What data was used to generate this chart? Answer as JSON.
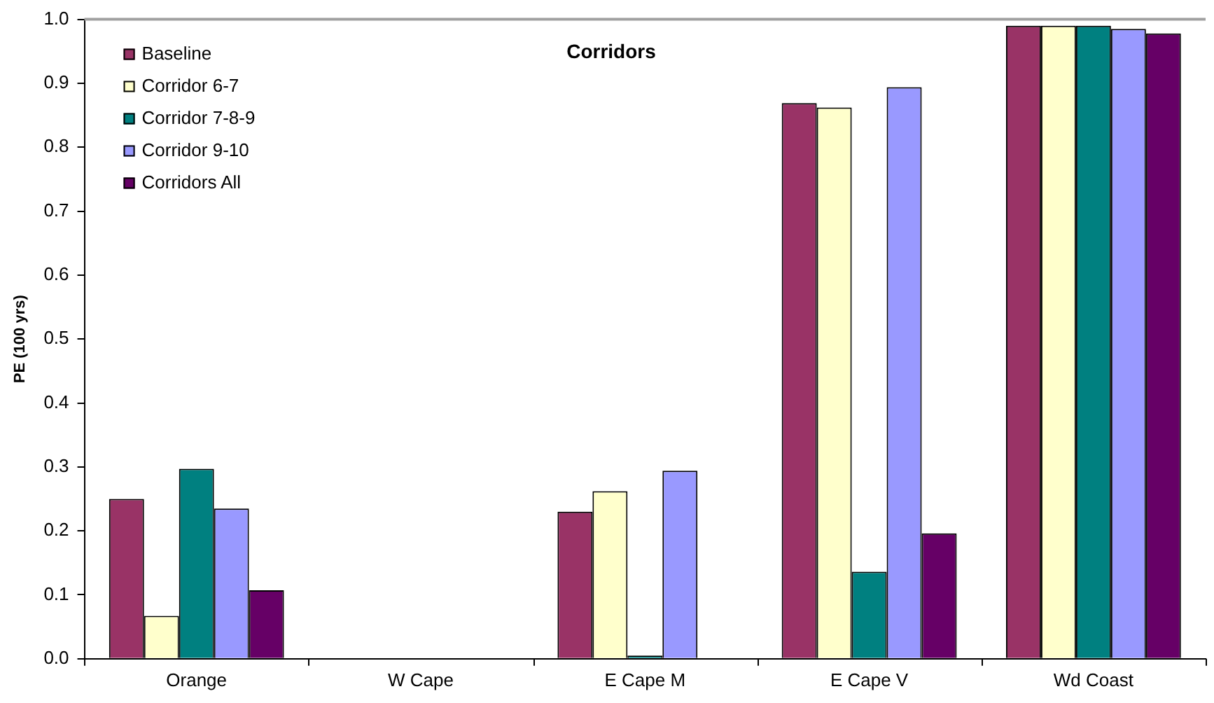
{
  "chart_data": {
    "type": "bar",
    "title": "Corridors",
    "ylabel": "PE (100 yrs)",
    "categories": [
      "Orange",
      "W Cape",
      "E Cape M",
      "E Cape V",
      "Wd Coast"
    ],
    "series": [
      {
        "name": "Baseline",
        "color": "#993366",
        "values": [
          0.25,
          0,
          0.23,
          0.869,
          0.99
        ]
      },
      {
        "name": "Corridor 6-7",
        "color": "#ffffcc",
        "values": [
          0.067,
          0,
          0.262,
          0.862,
          0.99
        ]
      },
      {
        "name": "Corridor 7-8-9",
        "color": "#008080",
        "values": [
          0.297,
          0,
          0.005,
          0.136,
          0.99
        ]
      },
      {
        "name": "Corridor 9-10",
        "color": "#9999ff",
        "values": [
          0.235,
          0,
          0.294,
          0.894,
          0.985
        ]
      },
      {
        "name": "Corridors All",
        "color": "#660066",
        "values": [
          0.107,
          0,
          0,
          0.196,
          0.978
        ]
      }
    ],
    "ylim": [
      0,
      1
    ],
    "yticks": [
      {
        "value": 0,
        "label": "0.0"
      },
      {
        "value": 0.1,
        "label": "0.1"
      },
      {
        "value": 0.2,
        "label": "0.2"
      },
      {
        "value": 0.3,
        "label": "0.3"
      },
      {
        "value": 0.4,
        "label": "0.4"
      },
      {
        "value": 0.5,
        "label": "0.5"
      },
      {
        "value": 0.6,
        "label": "0.6"
      },
      {
        "value": 0.7,
        "label": "0.7"
      },
      {
        "value": 0.8,
        "label": "0.8"
      },
      {
        "value": 0.9,
        "label": "0.9"
      },
      {
        "value": 1,
        "label": "1.0"
      }
    ],
    "grid": false,
    "legend": "top left"
  }
}
